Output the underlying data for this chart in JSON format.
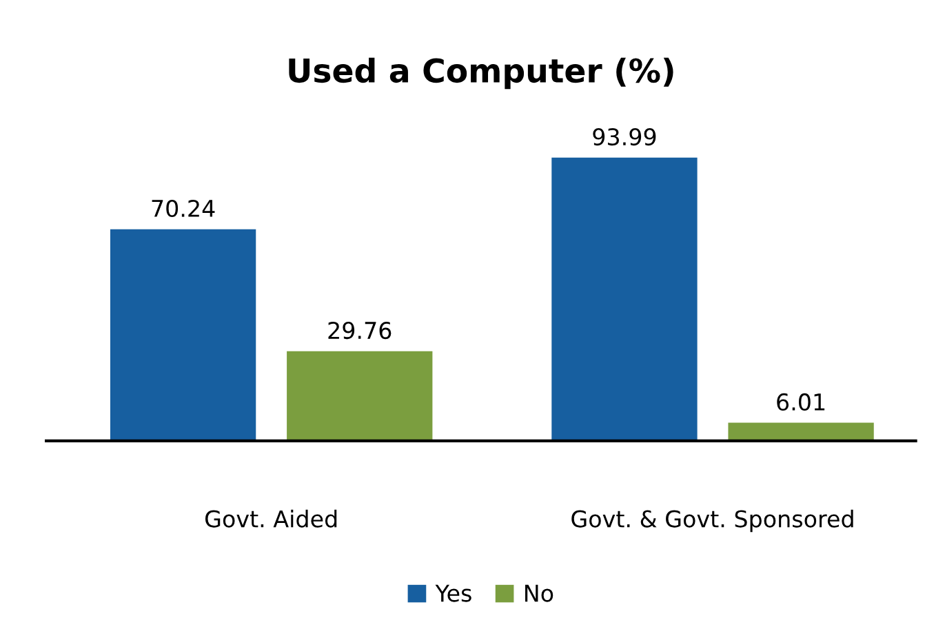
{
  "chart_data": {
    "type": "bar",
    "title": "Used a Computer (%)",
    "categories": [
      "Govt. Aided",
      "Govt. & Govt. Sponsored"
    ],
    "series": [
      {
        "name": "Yes",
        "color": "#175fa0",
        "values": [
          70.24,
          93.99
        ]
      },
      {
        "name": "No",
        "color": "#7b9e3f",
        "values": [
          29.76,
          6.01
        ]
      }
    ],
    "data_labels": true,
    "legend": "bottom",
    "grid": false
  }
}
